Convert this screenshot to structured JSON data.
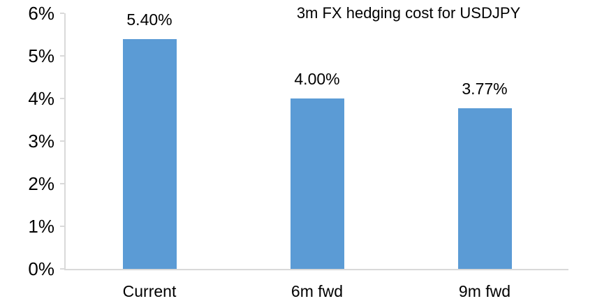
{
  "chart_data": {
    "type": "bar",
    "title": "3m FX hedging cost for USDJPY",
    "categories": [
      "Current",
      "6m fwd",
      "9m fwd"
    ],
    "values": [
      5.4,
      4.0,
      3.77
    ],
    "data_labels": [
      "5.40%",
      "4.00%",
      "3.77%"
    ],
    "y_tick_labels": [
      "0%",
      "1%",
      "2%",
      "3%",
      "4%",
      "5%",
      "6%"
    ],
    "ylim": [
      0,
      6
    ],
    "y_tick_step": 1,
    "xlabel": "",
    "ylabel": "",
    "grid": false,
    "legend": "none",
    "bar_color": "#5b9bd5",
    "axis_color": "#d9d9d9",
    "text_color": "#000000"
  }
}
